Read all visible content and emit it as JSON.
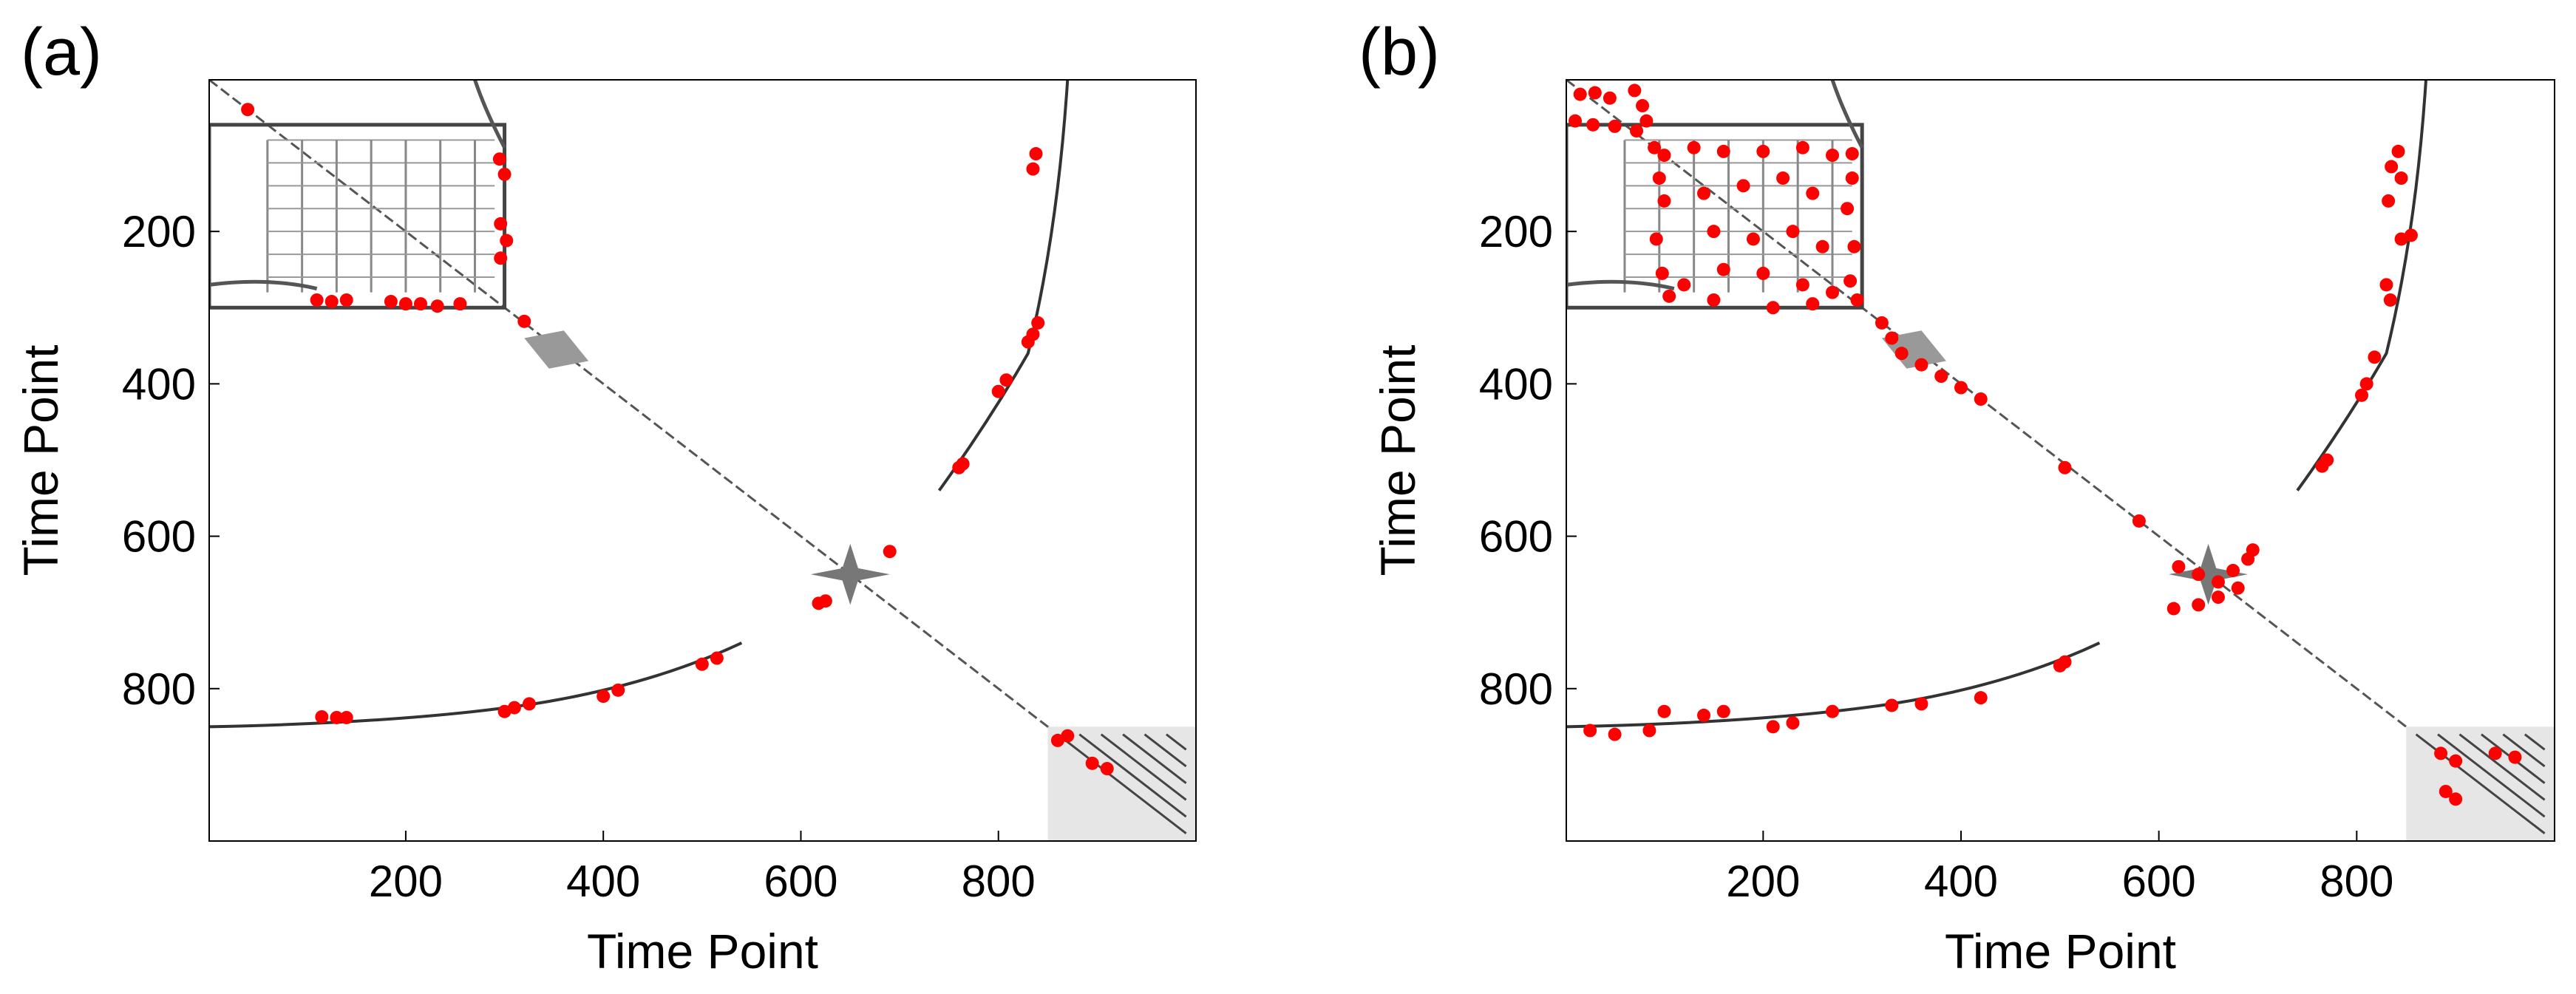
{
  "chart_data": [
    {
      "panel_label": "(a)",
      "type": "scatter",
      "background": "recurrence-plot",
      "xlabel": "Time Point",
      "ylabel": "Time Point",
      "xlim": [
        1,
        1000
      ],
      "ylim": [
        1000,
        1
      ],
      "xticks": [
        200,
        400,
        600,
        800
      ],
      "yticks": [
        200,
        400,
        600,
        800
      ],
      "marker_color": "#ff0000",
      "points": [
        [
          40,
          40
        ],
        [
          295,
          105
        ],
        [
          300,
          125
        ],
        [
          296,
          190
        ],
        [
          302,
          212
        ],
        [
          296,
          235
        ],
        [
          110,
          290
        ],
        [
          125,
          292
        ],
        [
          140,
          290
        ],
        [
          185,
          292
        ],
        [
          200,
          295
        ],
        [
          215,
          295
        ],
        [
          232,
          298
        ],
        [
          255,
          295
        ],
        [
          320,
          318
        ],
        [
          835,
          118
        ],
        [
          838,
          98
        ],
        [
          840,
          320
        ],
        [
          835,
          335
        ],
        [
          830,
          345
        ],
        [
          808,
          395
        ],
        [
          800,
          410
        ],
        [
          760,
          510
        ],
        [
          764,
          505
        ],
        [
          690,
          620
        ],
        [
          618,
          688
        ],
        [
          625,
          685
        ],
        [
          115,
          837
        ],
        [
          130,
          838
        ],
        [
          140,
          838
        ],
        [
          300,
          830
        ],
        [
          310,
          825
        ],
        [
          325,
          820
        ],
        [
          400,
          810
        ],
        [
          415,
          802
        ],
        [
          500,
          768
        ],
        [
          515,
          760
        ],
        [
          860,
          868
        ],
        [
          870,
          862
        ],
        [
          895,
          898
        ],
        [
          910,
          905
        ]
      ]
    },
    {
      "panel_label": "(b)",
      "type": "scatter",
      "background": "recurrence-plot",
      "xlabel": "Time Point",
      "ylabel": "Time Point",
      "xlim": [
        1,
        1000
      ],
      "ylim": [
        1000,
        1
      ],
      "xticks": [
        200,
        400,
        600,
        800
      ],
      "yticks": [
        200,
        400,
        600,
        800
      ],
      "marker_color": "#ff0000",
      "points": [
        [
          15,
          20
        ],
        [
          30,
          18
        ],
        [
          45,
          25
        ],
        [
          70,
          15
        ],
        [
          78,
          35
        ],
        [
          82,
          55
        ],
        [
          10,
          55
        ],
        [
          28,
          60
        ],
        [
          50,
          62
        ],
        [
          72,
          68
        ],
        [
          90,
          90
        ],
        [
          100,
          100
        ],
        [
          130,
          90
        ],
        [
          160,
          95
        ],
        [
          200,
          95
        ],
        [
          240,
          90
        ],
        [
          270,
          100
        ],
        [
          290,
          98
        ],
        [
          95,
          130
        ],
        [
          100,
          160
        ],
        [
          92,
          210
        ],
        [
          98,
          255
        ],
        [
          105,
          285
        ],
        [
          290,
          130
        ],
        [
          285,
          170
        ],
        [
          292,
          220
        ],
        [
          288,
          265
        ],
        [
          295,
          290
        ],
        [
          140,
          150
        ],
        [
          180,
          140
        ],
        [
          220,
          130
        ],
        [
          250,
          150
        ],
        [
          150,
          200
        ],
        [
          190,
          210
        ],
        [
          230,
          200
        ],
        [
          260,
          220
        ],
        [
          160,
          250
        ],
        [
          200,
          255
        ],
        [
          240,
          270
        ],
        [
          270,
          280
        ],
        [
          120,
          270
        ],
        [
          150,
          290
        ],
        [
          210,
          300
        ],
        [
          250,
          295
        ],
        [
          320,
          320
        ],
        [
          330,
          340
        ],
        [
          340,
          360
        ],
        [
          360,
          375
        ],
        [
          380,
          390
        ],
        [
          400,
          405
        ],
        [
          420,
          420
        ],
        [
          505,
          510
        ],
        [
          580,
          580
        ],
        [
          620,
          640
        ],
        [
          640,
          650
        ],
        [
          660,
          660
        ],
        [
          675,
          645
        ],
        [
          690,
          630
        ],
        [
          695,
          618
        ],
        [
          680,
          668
        ],
        [
          660,
          680
        ],
        [
          640,
          690
        ],
        [
          615,
          695
        ],
        [
          100,
          830
        ],
        [
          140,
          835
        ],
        [
          160,
          830
        ],
        [
          210,
          850
        ],
        [
          230,
          845
        ],
        [
          270,
          830
        ],
        [
          330,
          822
        ],
        [
          360,
          820
        ],
        [
          420,
          812
        ],
        [
          500,
          770
        ],
        [
          505,
          765
        ],
        [
          25,
          855
        ],
        [
          50,
          860
        ],
        [
          85,
          855
        ],
        [
          885,
          885
        ],
        [
          900,
          895
        ],
        [
          940,
          885
        ],
        [
          960,
          890
        ],
        [
          890,
          935
        ],
        [
          900,
          945
        ],
        [
          835,
          115
        ],
        [
          842,
          95
        ],
        [
          845,
          130
        ],
        [
          845,
          210
        ],
        [
          832,
          160
        ],
        [
          855,
          205
        ],
        [
          830,
          270
        ],
        [
          834,
          290
        ],
        [
          818,
          365
        ],
        [
          810,
          400
        ],
        [
          805,
          415
        ],
        [
          770,
          500
        ],
        [
          765,
          508
        ]
      ]
    }
  ]
}
